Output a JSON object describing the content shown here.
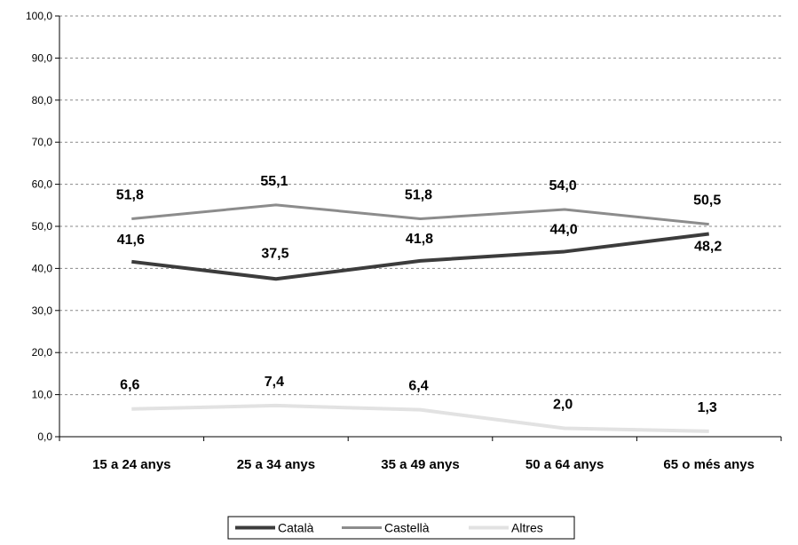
{
  "chart_data": {
    "type": "line",
    "categories": [
      "15 a 24 anys",
      "25 a 34 anys",
      "35 a 49 anys",
      "50 a 64 anys",
      "65 o més anys"
    ],
    "series": [
      {
        "name": "Català",
        "values": [
          41.6,
          37.5,
          41.8,
          44.0,
          48.2
        ],
        "labels": [
          "41,6",
          "37,5",
          "41,8",
          "44,0",
          "48,2"
        ],
        "color": "#3c3c3c"
      },
      {
        "name": "Castellà",
        "values": [
          51.8,
          55.1,
          51.8,
          54.0,
          50.5
        ],
        "labels": [
          "51,8",
          "55,1",
          "51,8",
          "54,0",
          "50,5"
        ],
        "color": "#8c8c8c"
      },
      {
        "name": "Altres",
        "values": [
          6.6,
          7.4,
          6.4,
          2.0,
          1.3
        ],
        "labels": [
          "6,6",
          "7,4",
          "6,4",
          "2,0",
          "1,3"
        ],
        "color": "#e2e2e2"
      }
    ],
    "yticks": [
      "0,0",
      "10,0",
      "20,0",
      "30,0",
      "40,0",
      "50,0",
      "60,0",
      "70,0",
      "80,0",
      "90,0",
      "100,0"
    ],
    "ylim": [
      0,
      100
    ],
    "grid": true,
    "legend_position": "bottom"
  }
}
